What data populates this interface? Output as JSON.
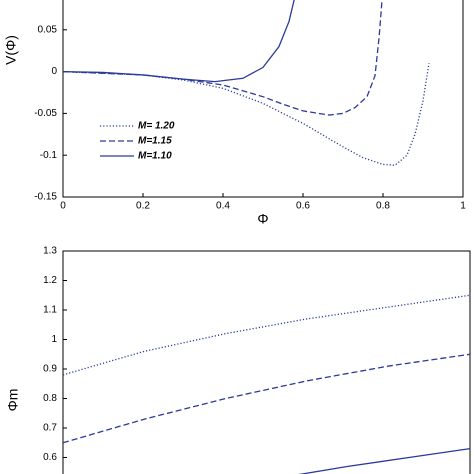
{
  "chart_data": [
    {
      "type": "line",
      "x_label": "Φ",
      "y_label": "V(Φ)",
      "xlim": [
        0,
        1
      ],
      "ylim": [
        -0.15,
        0.1
      ],
      "xticks": [
        0,
        0.2,
        0.4,
        0.6,
        0.8,
        1
      ],
      "yticks": [
        -0.15,
        -0.1,
        -0.05,
        0,
        0.05
      ],
      "legend": "lower-left",
      "series": [
        {
          "name": "M= 1.20",
          "color": "#2b3a9a",
          "style": "dotted",
          "x": [
            0,
            0.2,
            0.3,
            0.4,
            0.5,
            0.6,
            0.7,
            0.75,
            0.8,
            0.83,
            0.86,
            0.88,
            0.9,
            0.915
          ],
          "values": [
            0,
            -0.004,
            -0.01,
            -0.02,
            -0.038,
            -0.062,
            -0.09,
            -0.103,
            -0.111,
            -0.112,
            -0.1,
            -0.075,
            -0.035,
            0.01
          ]
        },
        {
          "name": "M=1.15",
          "color": "#2b3a9a",
          "style": "dashed",
          "x": [
            0,
            0.2,
            0.3,
            0.4,
            0.5,
            0.55,
            0.6,
            0.665,
            0.7,
            0.73,
            0.76,
            0.78,
            0.79,
            0.8
          ],
          "values": [
            0,
            -0.004,
            -0.009,
            -0.016,
            -0.03,
            -0.039,
            -0.047,
            -0.052,
            -0.05,
            -0.043,
            -0.03,
            -0.005,
            0.04,
            0.1
          ]
        },
        {
          "name": "M=1.10",
          "color": "#2b3a9a",
          "style": "solid",
          "x": [
            0,
            0.1,
            0.2,
            0.3,
            0.38,
            0.45,
            0.5,
            0.54,
            0.565,
            0.585
          ],
          "values": [
            0,
            -0.001,
            -0.004,
            -0.009,
            -0.012,
            -0.008,
            0.005,
            0.03,
            0.06,
            0.1
          ]
        }
      ]
    },
    {
      "type": "line",
      "y_label": "Φm",
      "xlim": [
        0,
        1
      ],
      "ylim": [
        0.5,
        1.3
      ],
      "yticks": [
        0.6,
        0.7,
        0.8,
        0.9,
        1,
        1.1,
        1.2,
        1.3
      ],
      "series": [
        {
          "color": "#2b3a9a",
          "style": "dotted",
          "x": [
            0,
            0.2,
            0.4,
            0.6,
            0.8,
            1
          ],
          "values": [
            0.88,
            0.96,
            1.02,
            1.07,
            1.11,
            1.15
          ]
        },
        {
          "color": "#2b3a9a",
          "style": "dashed",
          "x": [
            0,
            0.2,
            0.4,
            0.6,
            0.8,
            1
          ],
          "values": [
            0.65,
            0.73,
            0.8,
            0.86,
            0.91,
            0.95
          ]
        },
        {
          "color": "#2b3a9a",
          "style": "solid",
          "x": [
            0.57,
            0.7,
            0.85,
            1
          ],
          "values": [
            0.54,
            0.57,
            0.6,
            0.63
          ]
        }
      ]
    }
  ]
}
